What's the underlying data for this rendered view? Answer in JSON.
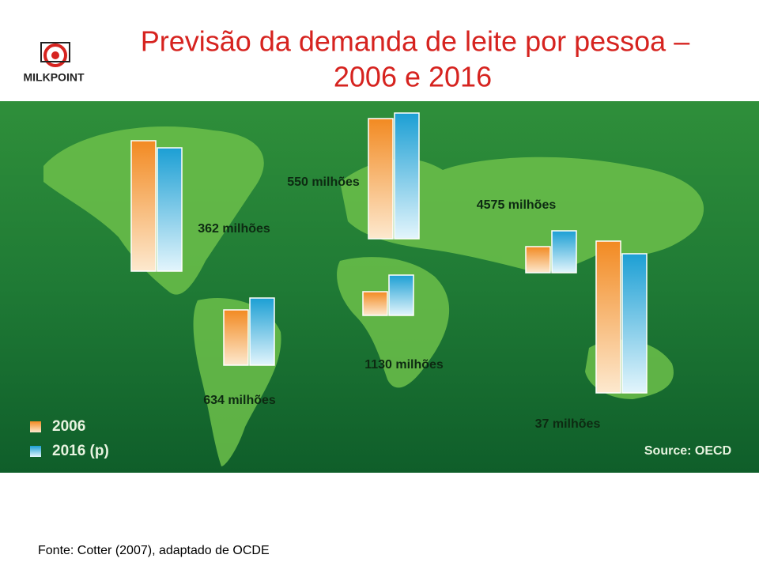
{
  "chart_data": {
    "type": "bar",
    "title": "Previsão da demanda de leite por pessoa –",
    "subtitle": "2006 e 2016",
    "logo": "MILKPOINT",
    "categories": [
      "362 milhões",
      "550 milhões",
      "4575 milhões",
      "1130 milhões",
      "634 milhões",
      "37 milhões"
    ],
    "series": [
      {
        "name": "2006",
        "color": "#f28a22",
        "values": [
          165,
          152,
          33,
          30,
          70,
          192
        ]
      },
      {
        "name": "2016 (p)",
        "color": "#1c9fd4",
        "values": [
          156,
          159,
          53,
          51,
          85,
          176
        ]
      }
    ],
    "source": "Source: OECD",
    "footer": "Fonte: Cotter (2007), adaptado de OCDE"
  }
}
